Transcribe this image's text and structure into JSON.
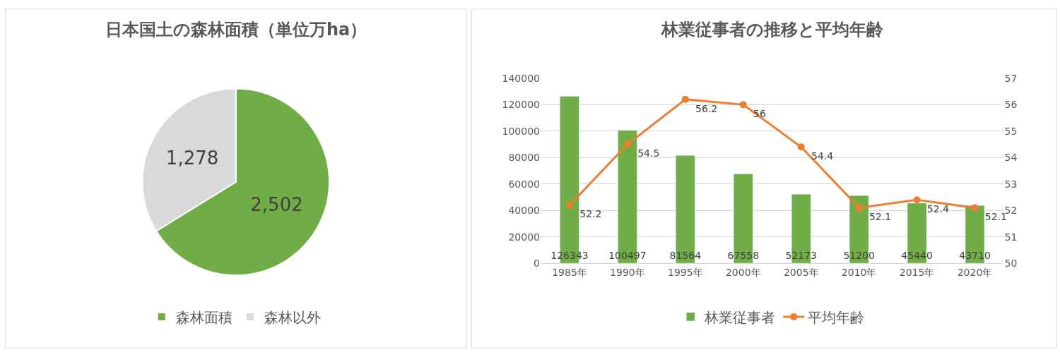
{
  "chart_data": [
    {
      "type": "pie",
      "title": "日本国土の森林面積（単位万ha）",
      "categories": [
        "森林面積",
        "森林以外"
      ],
      "values": [
        2502,
        1278
      ],
      "colors": [
        "#70ad47",
        "#d9d9d9"
      ],
      "value_labels": [
        "2,502",
        "1,278"
      ],
      "legend": "bottom"
    },
    {
      "type": "bar",
      "title": "林業従事者の推移と平均年齢",
      "categories": [
        "1985年",
        "1990年",
        "1995年",
        "2000年",
        "2005年",
        "2010年",
        "2015年",
        "2020年"
      ],
      "series": [
        {
          "name": "林業従事者",
          "type": "bar",
          "color": "#70ad47",
          "values": [
            126343,
            100497,
            81564,
            67558,
            52173,
            51200,
            45440,
            43710
          ]
        },
        {
          "name": "平均年齢",
          "type": "line",
          "axis": "y2",
          "color": "#ed7d31",
          "marker": "circle",
          "values": [
            52.2,
            54.5,
            56.2,
            56,
            54.4,
            52.1,
            52.4,
            52.1
          ]
        }
      ],
      "ylim": [
        0,
        140000
      ],
      "yticks": [
        0,
        20000,
        40000,
        60000,
        80000,
        100000,
        120000,
        140000
      ],
      "y2lim": [
        50,
        57
      ],
      "y2ticks": [
        50,
        51,
        52,
        53,
        54,
        55,
        56,
        57
      ],
      "data_labels": true,
      "grid": "y",
      "legend": "bottom"
    }
  ]
}
